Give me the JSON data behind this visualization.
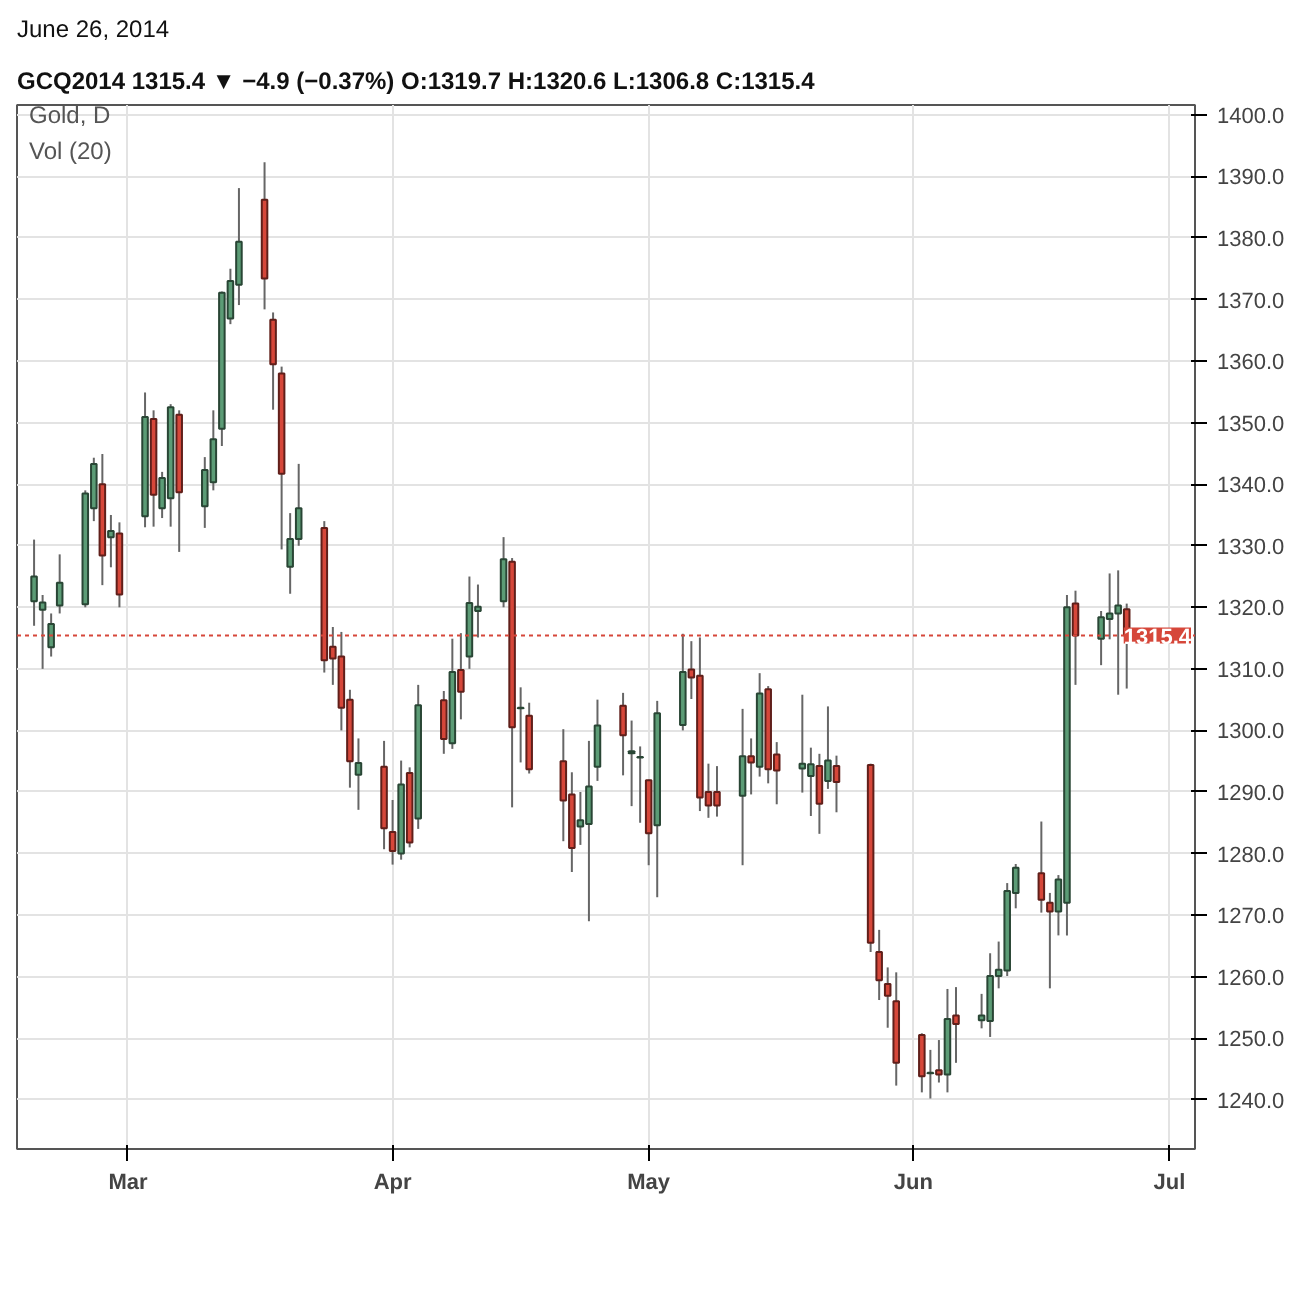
{
  "chart_data": {
    "type": "candlestick",
    "title": "June 26, 2014",
    "subtitle": "GCQ2014  1315.4 ▼ −4.9 (−0.37%)  O:1319.7  H:1320.6  L:1306.8  C:1315.4",
    "annotations": [
      "Gold, D",
      "Vol (20)"
    ],
    "x": [
      "2014-02-18",
      "2014-02-19",
      "2014-02-20",
      "2014-02-21",
      "2014-02-24",
      "2014-02-25",
      "2014-02-26",
      "2014-02-27",
      "2014-02-28",
      "2014-03-03",
      "2014-03-04",
      "2014-03-05",
      "2014-03-06",
      "2014-03-07",
      "2014-03-10",
      "2014-03-11",
      "2014-03-12",
      "2014-03-13",
      "2014-03-14",
      "2014-03-17",
      "2014-03-18",
      "2014-03-19",
      "2014-03-20",
      "2014-03-21",
      "2014-03-24",
      "2014-03-25",
      "2014-03-26",
      "2014-03-27",
      "2014-03-28",
      "2014-03-31",
      "2014-04-01",
      "2014-04-02",
      "2014-04-03",
      "2014-04-04",
      "2014-04-07",
      "2014-04-08",
      "2014-04-09",
      "2014-04-10",
      "2014-04-11",
      "2014-04-14",
      "2014-04-15",
      "2014-04-16",
      "2014-04-17",
      "2014-04-21",
      "2014-04-22",
      "2014-04-23",
      "2014-04-24",
      "2014-04-25",
      "2014-04-28",
      "2014-04-29",
      "2014-04-30",
      "2014-05-01",
      "2014-05-02",
      "2014-05-05",
      "2014-05-06",
      "2014-05-07",
      "2014-05-08",
      "2014-05-09",
      "2014-05-12",
      "2014-05-13",
      "2014-05-14",
      "2014-05-15",
      "2014-05-16",
      "2014-05-19",
      "2014-05-20",
      "2014-05-21",
      "2014-05-22",
      "2014-05-23",
      "2014-05-27",
      "2014-05-28",
      "2014-05-29",
      "2014-05-30",
      "2014-06-02",
      "2014-06-03",
      "2014-06-04",
      "2014-06-05",
      "2014-06-06",
      "2014-06-09",
      "2014-06-10",
      "2014-06-11",
      "2014-06-12",
      "2014-06-13",
      "2014-06-16",
      "2014-06-17",
      "2014-06-18",
      "2014-06-19",
      "2014-06-20",
      "2014-06-23",
      "2014-06-24",
      "2014-06-25",
      "2014-06-26"
    ],
    "ohlc": [
      [
        1321,
        1331,
        1317,
        1325
      ],
      [
        1319.6,
        1322,
        1310,
        1320.8
      ],
      [
        1313.5,
        1319,
        1312,
        1317.3
      ],
      [
        1320.3,
        1328.6,
        1319,
        1324
      ],
      [
        1320.5,
        1339,
        1320,
        1338.5
      ],
      [
        1336.1,
        1344.3,
        1334,
        1343.3
      ],
      [
        1340,
        1344.9,
        1323.6,
        1328.4
      ],
      [
        1331.4,
        1335,
        1326.5,
        1332.4
      ],
      [
        1332,
        1333.8,
        1320,
        1322.1
      ],
      [
        1334.8,
        1354.9,
        1333,
        1350.9
      ],
      [
        1350.6,
        1352,
        1333.1,
        1338.3
      ],
      [
        1336.1,
        1342,
        1334.5,
        1341
      ],
      [
        1337.7,
        1353,
        1333.1,
        1352.5
      ],
      [
        1351.3,
        1352,
        1329,
        1338.7
      ],
      [
        1336.4,
        1344.4,
        1332.9,
        1342.3
      ],
      [
        1340.3,
        1352,
        1339,
        1347.3
      ],
      [
        1349,
        1371.3,
        1346.2,
        1371.1
      ],
      [
        1366.9,
        1375,
        1366,
        1373
      ],
      [
        1372.4,
        1388.1,
        1369.1,
        1379.4
      ],
      [
        1386.2,
        1392.3,
        1368.4,
        1373.4
      ],
      [
        1366.7,
        1367.9,
        1352.1,
        1359.5
      ],
      [
        1358,
        1359.1,
        1329.4,
        1341.7
      ],
      [
        1326.6,
        1335.3,
        1322.2,
        1331.1
      ],
      [
        1331.1,
        1343.3,
        1330,
        1336.1
      ],
      [
        1332.9,
        1334,
        1309.4,
        1311.4
      ],
      [
        1313.6,
        1316.8,
        1307.4,
        1311.7
      ],
      [
        1312,
        1316,
        1300,
        1303.7
      ],
      [
        1305,
        1306.6,
        1290.7,
        1295
      ],
      [
        1292.8,
        1298.7,
        1287.1,
        1294.7
      ],
      [
        1294.1,
        1298.3,
        1280.7,
        1284.1
      ],
      [
        1283.5,
        1288.7,
        1278.2,
        1280.4
      ],
      [
        1280,
        1295.1,
        1279,
        1291.2
      ],
      [
        1293.1,
        1294,
        1281,
        1281.8
      ],
      [
        1285.7,
        1307.4,
        1284,
        1304.1
      ],
      [
        1304.9,
        1306.4,
        1296.2,
        1298.6
      ],
      [
        1297.9,
        1314.9,
        1297,
        1309.5
      ],
      [
        1309.8,
        1315.8,
        1301.8,
        1306.3
      ],
      [
        1312,
        1325,
        1310,
        1320.7
      ],
      [
        1319.4,
        1323.7,
        1315.1,
        1320.1
      ],
      [
        1321,
        1331.4,
        1320,
        1327.8
      ],
      [
        1327.4,
        1328,
        1287.5,
        1300.5
      ],
      [
        1303.6,
        1307,
        1294.8,
        1303.7
      ],
      [
        1302.4,
        1304.5,
        1293,
        1293.7
      ],
      [
        1295,
        1300.2,
        1282,
        1288.6
      ],
      [
        1289.6,
        1293.2,
        1277,
        1280.9
      ],
      [
        1284.4,
        1290,
        1281.4,
        1285.4
      ],
      [
        1284.8,
        1298.3,
        1269,
        1290.9
      ],
      [
        1294.1,
        1305,
        1291.8,
        1300.8
      ],
      [
        1304,
        1306.1,
        1292.7,
        1299.2
      ],
      [
        1296.3,
        1301.6,
        1287.7,
        1296.6
      ],
      [
        1295.6,
        1297.4,
        1285,
        1295.7
      ],
      [
        1291.9,
        1292,
        1278.1,
        1283.3
      ],
      [
        1284.6,
        1304.8,
        1272.9,
        1302.8
      ],
      [
        1300.9,
        1315.7,
        1300,
        1309.5
      ],
      [
        1309.9,
        1314.5,
        1305.1,
        1308.6
      ],
      [
        1308.9,
        1315.1,
        1286.9,
        1289.1
      ],
      [
        1290,
        1294.6,
        1285.8,
        1287.8
      ],
      [
        1290,
        1294.2,
        1286,
        1287.8
      ],
      [
        1289.4,
        1303.5,
        1278.1,
        1295.8
      ],
      [
        1295.8,
        1298.7,
        1289.6,
        1294.8
      ],
      [
        1294.1,
        1309.3,
        1292.5,
        1306
      ],
      [
        1306.7,
        1307.2,
        1291.4,
        1293.7
      ],
      [
        1296.1,
        1298.1,
        1288,
        1293.5
      ],
      [
        1293.8,
        1305.8,
        1289.9,
        1294.6
      ],
      [
        1292.6,
        1297.2,
        1286.1,
        1294.5
      ],
      [
        1294.2,
        1296.2,
        1283.2,
        1288.1
      ],
      [
        1291.8,
        1303.9,
        1290.5,
        1295.1
      ],
      [
        1294.2,
        1295.9,
        1286.7,
        1291.6
      ],
      [
        1294.4,
        1294.6,
        1264,
        1265.5
      ],
      [
        1264,
        1267.6,
        1256.2,
        1259.4
      ],
      [
        1258.8,
        1261.5,
        1251.7,
        1256.9
      ],
      [
        1256,
        1260.7,
        1242.3,
        1246
      ],
      [
        1250.5,
        1250.8,
        1241.2,
        1243.8
      ],
      [
        1244.3,
        1248.1,
        1240.2,
        1244.4
      ],
      [
        1244.8,
        1249.7,
        1242.8,
        1244.1
      ],
      [
        1244.1,
        1258,
        1241.2,
        1253.1
      ],
      [
        1253.7,
        1258.3,
        1246,
        1252.3
      ],
      [
        1252.9,
        1257.2,
        1251.6,
        1253.7
      ],
      [
        1252.8,
        1263.8,
        1250.2,
        1260.1
      ],
      [
        1260.1,
        1265.7,
        1258.1,
        1261.1
      ],
      [
        1261,
        1275.2,
        1260.1,
        1273.9
      ],
      [
        1273.6,
        1278.3,
        1271.1,
        1277.7
      ],
      [
        1276.8,
        1285.2,
        1270.4,
        1272.5
      ],
      [
        1272,
        1273.6,
        1258.1,
        1270.6
      ],
      [
        1270.6,
        1276.5,
        1266.7,
        1275.8
      ],
      [
        1272,
        1322,
        1266.7,
        1320
      ],
      [
        1320.6,
        1322.7,
        1307.4,
        1315.4
      ],
      [
        1314.9,
        1319.4,
        1310.6,
        1318.4
      ],
      [
        1318.1,
        1325.5,
        1314.8,
        1319
      ],
      [
        1319,
        1326,
        1305.8,
        1320.3
      ],
      [
        1319.7,
        1320.6,
        1306.8,
        1315.4
      ]
    ],
    "colors": [
      "#5c9c76",
      "#5c9c76",
      "#5c9c76",
      "#5c9c76",
      "#5c9c76",
      "#5c9c76",
      "#d6473a",
      "#5c9c76",
      "#d6473a",
      "#5c9c76",
      "#d6473a",
      "#5c9c76",
      "#5c9c76",
      "#d6473a",
      "#5c9c76",
      "#5c9c76",
      "#5c9c76",
      "#5c9c76",
      "#5c9c76",
      "#d6473a",
      "#d6473a",
      "#d6473a",
      "#5c9c76",
      "#5c9c76",
      "#d6473a",
      "#d6473a",
      "#d6473a",
      "#d6473a",
      "#5c9c76",
      "#d6473a",
      "#d6473a",
      "#5c9c76",
      "#d6473a",
      "#5c9c76",
      "#d6473a",
      "#5c9c76",
      "#d6473a",
      "#5c9c76",
      "#5c9c76",
      "#5c9c76",
      "#d6473a",
      "#5c9c76",
      "#d6473a",
      "#d6473a",
      "#d6473a",
      "#5c9c76",
      "#5c9c76",
      "#5c9c76",
      "#d6473a",
      "#5c9c76",
      "#5c9c76",
      "#d6473a",
      "#5c9c76",
      "#5c9c76",
      "#d6473a",
      "#d6473a",
      "#d6473a",
      "#d6473a",
      "#5c9c76",
      "#d6473a",
      "#5c9c76",
      "#d6473a",
      "#d6473a",
      "#5c9c76",
      "#5c9c76",
      "#d6473a",
      "#5c9c76",
      "#d6473a",
      "#d6473a",
      "#d6473a",
      "#d6473a",
      "#d6473a",
      "#d6473a",
      "#5c9c76",
      "#d6473a",
      "#5c9c76",
      "#d6473a",
      "#5c9c76",
      "#5c9c76",
      "#5c9c76",
      "#5c9c76",
      "#5c9c76",
      "#d6473a",
      "#d6473a",
      "#5c9c76",
      "#5c9c76",
      "#d6473a",
      "#5c9c76",
      "#5c9c76",
      "#5c9c76",
      "#d6473a"
    ],
    "xlim": [
      "2014-02-16",
      "2014-07-04"
    ],
    "xticks": [
      {
        "value": "2014-03-01",
        "label": "Mar"
      },
      {
        "value": "2014-04-01",
        "label": "Apr"
      },
      {
        "value": "2014-05-01",
        "label": "May"
      },
      {
        "value": "2014-06-01",
        "label": "Jun"
      },
      {
        "value": "2014-07-01",
        "label": "Jul"
      }
    ],
    "ylim": [
      1232,
      1401.6
    ],
    "yticks": [
      {
        "value": 1240,
        "label": "1240.0"
      },
      {
        "value": 1250,
        "label": "1250.0"
      },
      {
        "value": 1260,
        "label": "1260.0"
      },
      {
        "value": 1270,
        "label": "1270.0"
      },
      {
        "value": 1280,
        "label": "1280.0"
      },
      {
        "value": 1290,
        "label": "1290.0"
      },
      {
        "value": 1300,
        "label": "1300.0"
      },
      {
        "value": 1310,
        "label": "1310.0"
      },
      {
        "value": 1320,
        "label": "1320.0"
      },
      {
        "value": 1330,
        "label": "1330.0"
      },
      {
        "value": 1340,
        "label": "1340.0"
      },
      {
        "value": 1350,
        "label": "1350.0"
      },
      {
        "value": 1360,
        "label": "1360.0"
      },
      {
        "value": 1370,
        "label": "1370.0"
      },
      {
        "value": 1380,
        "label": "1380.0"
      },
      {
        "value": 1390,
        "label": "1390.0"
      },
      {
        "value": 1400,
        "label": "1400.0"
      }
    ],
    "ref_lines": [
      {
        "axis": "y",
        "value": 1315.4,
        "label": "1315.4",
        "color": "#d6473a",
        "line_style": "dotted"
      }
    ],
    "grid": true
  }
}
